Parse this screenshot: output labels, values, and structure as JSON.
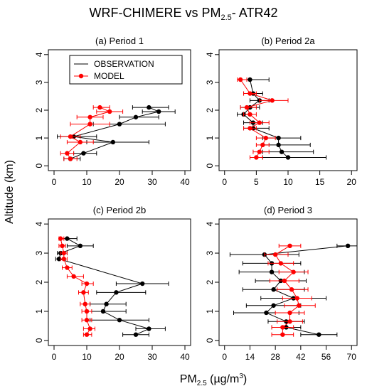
{
  "figure": {
    "title_main": "WRF-CHIMERE vs PM",
    "title_sub": "2.5",
    "title_tail": "- ATR42",
    "xlabel_main": "PM",
    "xlabel_sub": "2.5",
    "xlabel_unit": " (µg/m",
    "xlabel_sup": "3",
    "xlabel_close": ")",
    "ylabel": "Altitude (km)",
    "colors": {
      "observation": "#000000",
      "model": "#ff0000"
    },
    "legend": {
      "observation": "OBSERVATION",
      "model": "MODEL",
      "position": "top-left of panel (a)"
    }
  },
  "chart_data": [
    {
      "panel": "a",
      "title": "(a)   Period 1",
      "type": "line",
      "xlim": [
        0,
        40
      ],
      "xticks": [
        0,
        10,
        20,
        30,
        40
      ],
      "ylim": [
        0,
        4
      ],
      "yticks": [
        0,
        1,
        2,
        3,
        4
      ],
      "series": [
        {
          "name": "OBSERVATION",
          "points": [
            {
              "y": 0.25,
              "x": 5,
              "lo": 3,
              "hi": 8
            },
            {
              "y": 0.45,
              "x": 9,
              "lo": 6,
              "hi": 13
            },
            {
              "y": 0.85,
              "x": 18,
              "lo": 10,
              "hi": 29
            },
            {
              "y": 1.05,
              "x": 6,
              "lo": 1,
              "hi": 13
            },
            {
              "y": 1.5,
              "x": 20,
              "lo": 12,
              "hi": 34
            },
            {
              "y": 1.75,
              "x": 25,
              "lo": 20,
              "hi": 32
            },
            {
              "y": 1.95,
              "x": 32,
              "lo": 27,
              "hi": 37
            },
            {
              "y": 2.1,
              "x": 29,
              "lo": 24,
              "hi": 35
            }
          ]
        },
        {
          "name": "MODEL",
          "points": [
            {
              "y": 0.25,
              "x": 5,
              "lo": 3,
              "hi": 7
            },
            {
              "y": 0.45,
              "x": 4,
              "lo": 2,
              "hi": 6
            },
            {
              "y": 0.85,
              "x": 8,
              "lo": 4,
              "hi": 12
            },
            {
              "y": 1.05,
              "x": 5,
              "lo": 2,
              "hi": 8
            },
            {
              "y": 1.5,
              "x": 11,
              "lo": 5,
              "hi": 17
            },
            {
              "y": 1.75,
              "x": 11,
              "lo": 7,
              "hi": 15
            },
            {
              "y": 1.95,
              "x": 17,
              "lo": 13,
              "hi": 21
            },
            {
              "y": 2.1,
              "x": 14,
              "lo": 12,
              "hi": 17
            }
          ]
        }
      ]
    },
    {
      "panel": "b",
      "title": "(b)   Period 2a",
      "type": "line",
      "xlim": [
        0,
        20
      ],
      "xticks": [
        0,
        5,
        10,
        15,
        20
      ],
      "ylim": [
        0,
        4
      ],
      "yticks": [
        0,
        1,
        2,
        3,
        4
      ],
      "series": [
        {
          "name": "OBSERVATION",
          "points": [
            {
              "y": 0.3,
              "x": 10,
              "lo": 6,
              "hi": 16
            },
            {
              "y": 0.5,
              "x": 9,
              "lo": 6,
              "hi": 14
            },
            {
              "y": 0.75,
              "x": 8.5,
              "lo": 6,
              "hi": 13.5
            },
            {
              "y": 1.0,
              "x": 8.5,
              "lo": 6,
              "hi": 12
            },
            {
              "y": 1.35,
              "x": 4.5,
              "lo": 3,
              "hi": 7
            },
            {
              "y": 1.55,
              "x": 4.5,
              "lo": 3,
              "hi": 6
            },
            {
              "y": 1.85,
              "x": 3,
              "lo": 2,
              "hi": 4
            },
            {
              "y": 2.1,
              "x": 4,
              "lo": 2.5,
              "hi": 5.5
            },
            {
              "y": 2.35,
              "x": 5.5,
              "lo": 4,
              "hi": 7
            },
            {
              "y": 2.6,
              "x": 4.5,
              "lo": 3,
              "hi": 6
            },
            {
              "y": 3.1,
              "x": 4,
              "lo": 2.5,
              "hi": 7
            }
          ]
        },
        {
          "name": "MODEL",
          "points": [
            {
              "y": 0.3,
              "x": 5,
              "lo": 4,
              "hi": 6
            },
            {
              "y": 0.5,
              "x": 5.5,
              "lo": 4.5,
              "hi": 7
            },
            {
              "y": 0.75,
              "x": 6,
              "lo": 5,
              "hi": 7
            },
            {
              "y": 1.0,
              "x": 6.5,
              "lo": 5,
              "hi": 8
            },
            {
              "y": 1.35,
              "x": 4,
              "lo": 3,
              "hi": 5
            },
            {
              "y": 1.55,
              "x": 5.5,
              "lo": 4,
              "hi": 7
            },
            {
              "y": 1.85,
              "x": 4,
              "lo": 3,
              "hi": 5
            },
            {
              "y": 2.1,
              "x": 3.5,
              "lo": 2.5,
              "hi": 5
            },
            {
              "y": 2.35,
              "x": 7.5,
              "lo": 5.5,
              "hi": 10
            },
            {
              "y": 2.6,
              "x": 4,
              "lo": 3,
              "hi": 5
            },
            {
              "y": 3.1,
              "x": 2.5,
              "lo": 2,
              "hi": 3.5
            }
          ]
        }
      ]
    },
    {
      "panel": "c",
      "title": "(c)   Period 2b",
      "type": "line",
      "xlim": [
        0,
        40
      ],
      "xticks": [
        0,
        10,
        20,
        30,
        40
      ],
      "ylim": [
        0,
        4
      ],
      "yticks": [
        0,
        1,
        2,
        3,
        4
      ],
      "series": [
        {
          "name": "OBSERVATION",
          "points": [
            {
              "y": 0.2,
              "x": 25,
              "lo": 21,
              "hi": 29
            },
            {
              "y": 0.4,
              "x": 29,
              "lo": 25,
              "hi": 34
            },
            {
              "y": 0.7,
              "x": 20,
              "lo": 11,
              "hi": 29
            },
            {
              "y": 1.0,
              "x": 15,
              "lo": 10,
              "hi": 22
            },
            {
              "y": 1.25,
              "x": 16,
              "lo": 11,
              "hi": 22
            },
            {
              "y": 1.65,
              "x": 19,
              "lo": 13,
              "hi": 28
            },
            {
              "y": 1.95,
              "x": 27,
              "lo": 19,
              "hi": 35
            },
            {
              "y": 2.8,
              "x": 1.5,
              "lo": 0.5,
              "hi": 3
            },
            {
              "y": 3.0,
              "x": 2,
              "lo": 1,
              "hi": 4
            },
            {
              "y": 3.25,
              "x": 8,
              "lo": 4,
              "hi": 12
            },
            {
              "y": 3.5,
              "x": 4,
              "lo": 2,
              "hi": 7
            }
          ]
        },
        {
          "name": "MODEL",
          "points": [
            {
              "y": 0.2,
              "x": 10,
              "lo": 9,
              "hi": 11.5
            },
            {
              "y": 0.4,
              "x": 11,
              "lo": 9,
              "hi": 12.5
            },
            {
              "y": 0.7,
              "x": 10,
              "lo": 8.5,
              "hi": 11.5
            },
            {
              "y": 1.0,
              "x": 10,
              "lo": 8.5,
              "hi": 11.5
            },
            {
              "y": 1.25,
              "x": 9.5,
              "lo": 8,
              "hi": 11
            },
            {
              "y": 1.65,
              "x": 9,
              "lo": 7.5,
              "hi": 10.5
            },
            {
              "y": 1.95,
              "x": 10,
              "lo": 8.5,
              "hi": 12
            },
            {
              "y": 2.2,
              "x": 6,
              "lo": 4,
              "hi": 9
            },
            {
              "y": 2.5,
              "x": 4,
              "lo": 2.5,
              "hi": 5.5
            },
            {
              "y": 2.8,
              "x": 3,
              "lo": 2,
              "hi": 4
            },
            {
              "y": 3.0,
              "x": 3,
              "lo": 2,
              "hi": 4
            },
            {
              "y": 3.25,
              "x": 2.5,
              "lo": 1.5,
              "hi": 3.5
            },
            {
              "y": 3.5,
              "x": 2,
              "lo": 1.5,
              "hi": 3
            }
          ]
        }
      ]
    },
    {
      "panel": "d",
      "title": "(d)   Period 3",
      "type": "line",
      "xlim": [
        0,
        70
      ],
      "xticks": [
        0,
        14,
        28,
        42,
        56,
        70
      ],
      "ylim": [
        0,
        4
      ],
      "yticks": [
        0,
        1,
        2,
        3,
        4
      ],
      "series": [
        {
          "name": "OBSERVATION",
          "points": [
            {
              "y": 0.2,
              "x": 52,
              "lo": 42,
              "hi": 62
            },
            {
              "y": 0.45,
              "x": 34,
              "lo": 26,
              "hi": 42
            },
            {
              "y": 0.65,
              "x": 34,
              "lo": 24,
              "hi": 44
            },
            {
              "y": 0.95,
              "x": 23,
              "lo": 5,
              "hi": 41
            },
            {
              "y": 1.2,
              "x": 27,
              "lo": 12,
              "hi": 42
            },
            {
              "y": 1.45,
              "x": 38,
              "lo": 20,
              "hi": 56
            },
            {
              "y": 1.75,
              "x": 27,
              "lo": 10,
              "hi": 44
            },
            {
              "y": 2.05,
              "x": 31,
              "lo": 17,
              "hi": 45
            },
            {
              "y": 2.35,
              "x": 26,
              "lo": 8,
              "hi": 44
            },
            {
              "y": 2.65,
              "x": 26,
              "lo": 10,
              "hi": 42
            },
            {
              "y": 2.95,
              "x": 22,
              "lo": 3,
              "hi": 41
            },
            {
              "y": 3.25,
              "x": 68,
              "lo": 62,
              "hi": 74
            }
          ]
        },
        {
          "name": "MODEL",
          "points": [
            {
              "y": 0.2,
              "x": 32,
              "lo": 26,
              "hi": 38
            },
            {
              "y": 0.45,
              "x": 32,
              "lo": 26,
              "hi": 38
            },
            {
              "y": 0.65,
              "x": 36,
              "lo": 29,
              "hi": 43
            },
            {
              "y": 0.95,
              "x": 36,
              "lo": 28,
              "hi": 44
            },
            {
              "y": 1.2,
              "x": 41,
              "lo": 33,
              "hi": 50
            },
            {
              "y": 1.45,
              "x": 40,
              "lo": 32,
              "hi": 48
            },
            {
              "y": 1.75,
              "x": 37,
              "lo": 29,
              "hi": 46
            },
            {
              "y": 2.05,
              "x": 33,
              "lo": 25,
              "hi": 41
            },
            {
              "y": 2.35,
              "x": 38,
              "lo": 30,
              "hi": 46
            },
            {
              "y": 2.65,
              "x": 31,
              "lo": 24,
              "hi": 38
            },
            {
              "y": 2.95,
              "x": 28,
              "lo": 22,
              "hi": 35
            },
            {
              "y": 3.25,
              "x": 36,
              "lo": 30,
              "hi": 42
            }
          ]
        }
      ]
    }
  ]
}
